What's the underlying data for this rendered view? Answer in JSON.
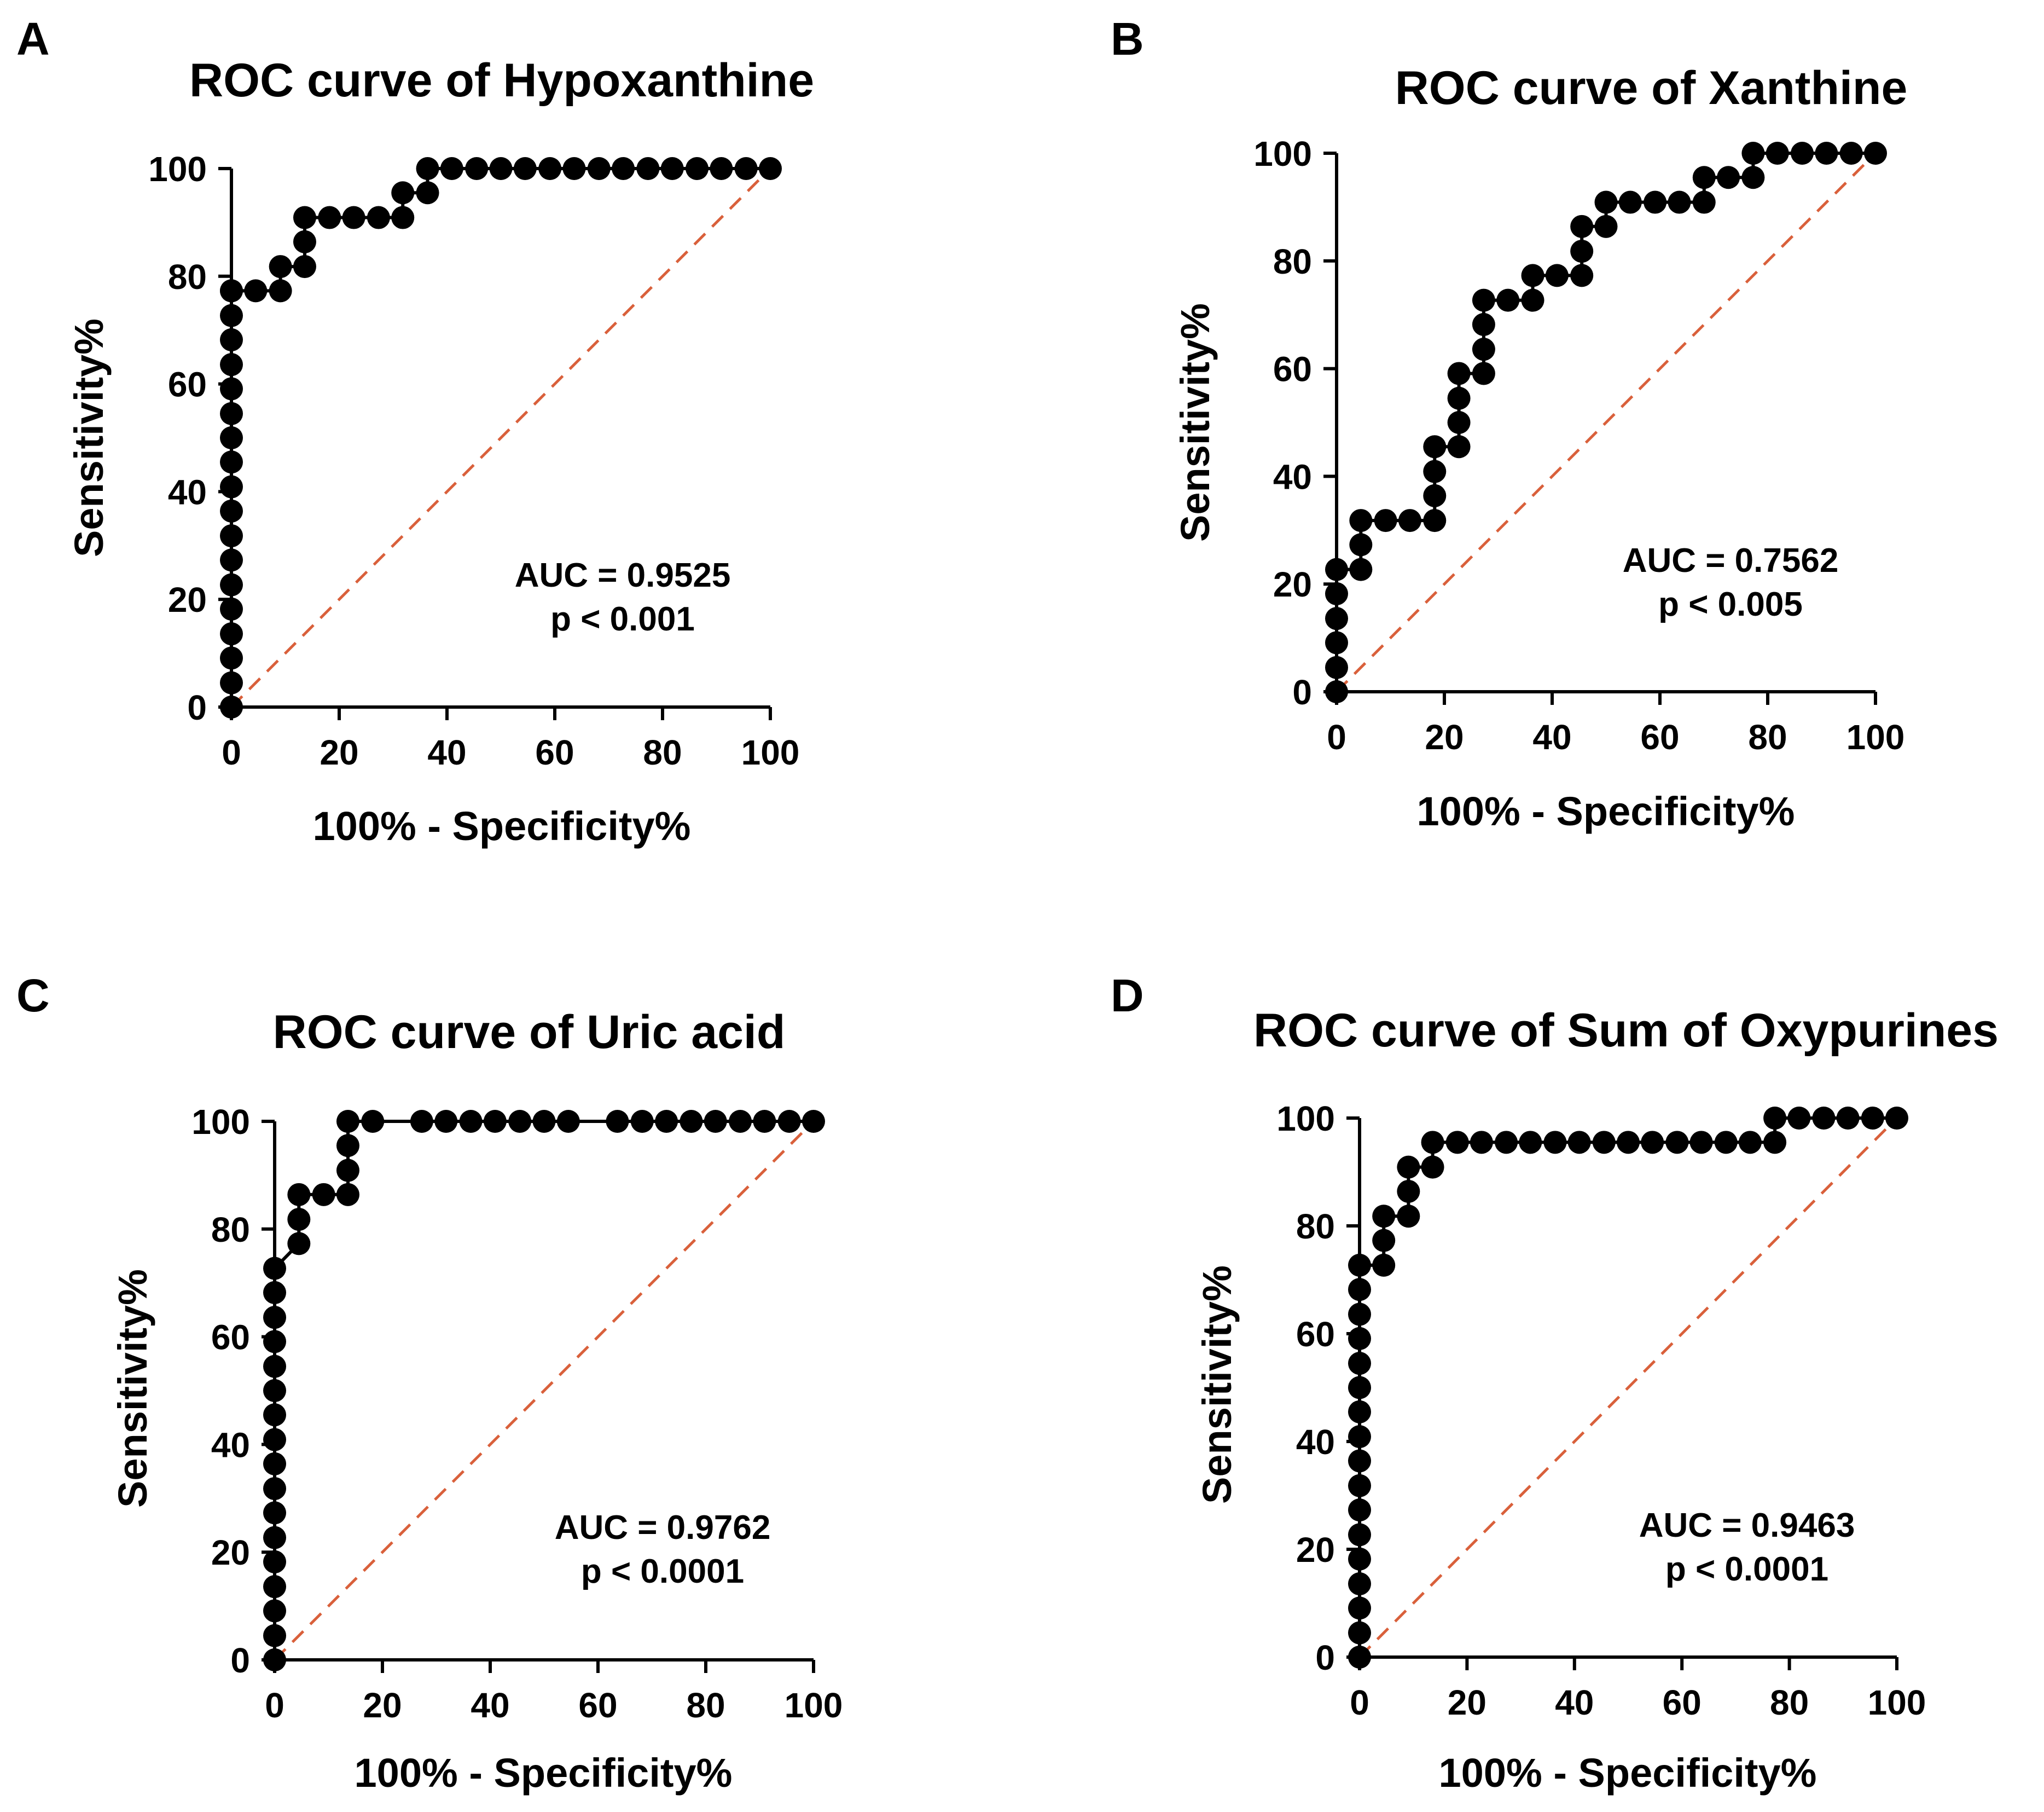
{
  "colors": {
    "curve": "#000000",
    "reference_line": "#d9603b",
    "axis": "#000000"
  },
  "chart_data": [
    {
      "type": "line",
      "panel": "A",
      "title": "ROC curve of Hypoxanthine",
      "xlabel": "100% - Specificity%",
      "ylabel": "Sensitivity%",
      "xlim": [
        0,
        100
      ],
      "ylim": [
        0,
        100
      ],
      "xticks": [
        0,
        20,
        40,
        60,
        80,
        100
      ],
      "yticks": [
        0,
        20,
        40,
        60,
        80,
        100
      ],
      "grid": false,
      "reference_line": "diagonal",
      "auc_text": "AUC = 0.9525",
      "p_text": "p < 0.001",
      "series": [
        {
          "name": "Hypoxanthine",
          "x": [
            0,
            0,
            0,
            0,
            0,
            0,
            0,
            0,
            0,
            0,
            0,
            0,
            0,
            0,
            0,
            0,
            0,
            0,
            0,
            4.5,
            9.1,
            9.1,
            13.6,
            13.6,
            13.6,
            18.2,
            22.7,
            27.3,
            31.8,
            31.8,
            36.4,
            36.4,
            40.9,
            45.5,
            50,
            54.5,
            59.1,
            63.6,
            68.2,
            72.7,
            77.3,
            81.8,
            86.4,
            90.9,
            95.5,
            100
          ],
          "y": [
            0,
            4.5,
            9.1,
            13.6,
            18.2,
            22.7,
            27.3,
            31.8,
            36.4,
            40.9,
            45.5,
            50,
            54.5,
            59.1,
            63.6,
            68.2,
            72.7,
            77.3,
            77.3,
            77.3,
            77.3,
            81.8,
            81.8,
            86.4,
            90.9,
            90.9,
            90.9,
            90.9,
            90.9,
            95.5,
            95.5,
            100,
            100,
            100,
            100,
            100,
            100,
            100,
            100,
            100,
            100,
            100,
            100,
            100,
            100,
            100
          ]
        }
      ]
    },
    {
      "type": "line",
      "panel": "B",
      "title": "ROC curve of Xanthine",
      "xlabel": "100% - Specificity%",
      "ylabel": "Sensitivity%",
      "xlim": [
        0,
        100
      ],
      "ylim": [
        0,
        100
      ],
      "xticks": [
        0,
        20,
        40,
        60,
        80,
        100
      ],
      "yticks": [
        0,
        20,
        40,
        60,
        80,
        100
      ],
      "grid": false,
      "reference_line": "diagonal",
      "auc_text": "AUC = 0.7562",
      "p_text": "p < 0.005",
      "series": [
        {
          "name": "Xanthine",
          "x": [
            0,
            0,
            0,
            0,
            0,
            0,
            4.5,
            4.5,
            4.5,
            9.1,
            13.6,
            18.2,
            18.2,
            18.2,
            18.2,
            22.7,
            22.7,
            22.7,
            22.7,
            27.3,
            27.3,
            27.3,
            27.3,
            31.8,
            36.4,
            36.4,
            40.9,
            45.5,
            45.5,
            45.5,
            50,
            50,
            54.5,
            59.1,
            63.6,
            68.2,
            68.2,
            72.7,
            77.3,
            77.3,
            81.8,
            86.4,
            90.9,
            95.5,
            100
          ],
          "y": [
            0,
            4.5,
            9.1,
            13.6,
            18.2,
            22.7,
            22.7,
            27.3,
            31.8,
            31.8,
            31.8,
            31.8,
            36.4,
            40.9,
            45.5,
            45.5,
            50,
            54.5,
            59.1,
            59.1,
            63.6,
            68.2,
            72.7,
            72.7,
            72.7,
            77.3,
            77.3,
            77.3,
            81.8,
            86.4,
            86.4,
            90.9,
            90.9,
            90.9,
            90.9,
            90.9,
            95.5,
            95.5,
            95.5,
            100,
            100,
            100,
            100,
            100,
            100
          ]
        }
      ]
    },
    {
      "type": "line",
      "panel": "C",
      "title": "ROC curve of Uric acid",
      "xlabel": "100% - Specificity%",
      "ylabel": "Sensitivity%",
      "xlim": [
        0,
        100
      ],
      "ylim": [
        0,
        100
      ],
      "xticks": [
        0,
        20,
        40,
        60,
        80,
        100
      ],
      "yticks": [
        0,
        20,
        40,
        60,
        80,
        100
      ],
      "grid": false,
      "reference_line": "diagonal",
      "auc_text": "AUC = 0.9762",
      "p_text": "p < 0.0001",
      "series": [
        {
          "name": "Uric acid",
          "x": [
            0,
            0,
            0,
            0,
            0,
            0,
            0,
            0,
            0,
            0,
            0,
            0,
            0,
            0,
            0,
            0,
            0,
            4.5,
            4.5,
            4.5,
            9.1,
            13.6,
            13.6,
            13.6,
            13.6,
            18.2,
            27.3,
            31.8,
            36.4,
            40.9,
            45.5,
            50,
            54.5,
            63.6,
            68.2,
            72.7,
            77.3,
            81.8,
            86.4,
            90.9,
            95.5,
            100
          ],
          "y": [
            0,
            4.5,
            9.1,
            13.6,
            18.2,
            22.7,
            27.3,
            31.8,
            36.4,
            40.9,
            45.5,
            50,
            54.5,
            59.1,
            63.6,
            68.2,
            72.7,
            77.3,
            81.8,
            86.4,
            86.4,
            86.4,
            90.9,
            95.5,
            100,
            100,
            100,
            100,
            100,
            100,
            100,
            100,
            100,
            100,
            100,
            100,
            100,
            100,
            100,
            100,
            100,
            100
          ]
        }
      ]
    },
    {
      "type": "line",
      "panel": "D",
      "title": "ROC curve of Sum of Oxypurines",
      "xlabel": "100% - Specificity%",
      "ylabel": "Sensitivity%",
      "xlim": [
        0,
        100
      ],
      "ylim": [
        0,
        100
      ],
      "xticks": [
        0,
        20,
        40,
        60,
        80,
        100
      ],
      "yticks": [
        0,
        20,
        40,
        60,
        80,
        100
      ],
      "grid": false,
      "reference_line": "diagonal",
      "auc_text": "AUC = 0.9463",
      "p_text": "p < 0.0001",
      "series": [
        {
          "name": "Sum of Oxypurines",
          "x": [
            0,
            0,
            0,
            0,
            0,
            0,
            0,
            0,
            0,
            0,
            0,
            0,
            0,
            0,
            0,
            0,
            0,
            4.5,
            4.5,
            4.5,
            9.1,
            9.1,
            9.1,
            13.6,
            13.6,
            18.2,
            22.7,
            27.3,
            31.8,
            36.4,
            40.9,
            45.5,
            50,
            54.5,
            59.1,
            63.6,
            68.2,
            72.7,
            77.3,
            77.3,
            81.8,
            86.4,
            90.9,
            95.5,
            100
          ],
          "y": [
            0,
            4.5,
            9.1,
            13.6,
            18.2,
            22.7,
            27.3,
            31.8,
            36.4,
            40.9,
            45.5,
            50,
            54.5,
            59.1,
            63.6,
            68.2,
            72.7,
            72.7,
            77.3,
            81.8,
            81.8,
            86.4,
            90.9,
            90.9,
            95.5,
            95.5,
            95.5,
            95.5,
            95.5,
            95.5,
            95.5,
            95.5,
            95.5,
            95.5,
            95.5,
            95.5,
            95.5,
            95.5,
            95.5,
            100,
            100,
            100,
            100,
            100,
            100
          ]
        }
      ]
    }
  ]
}
